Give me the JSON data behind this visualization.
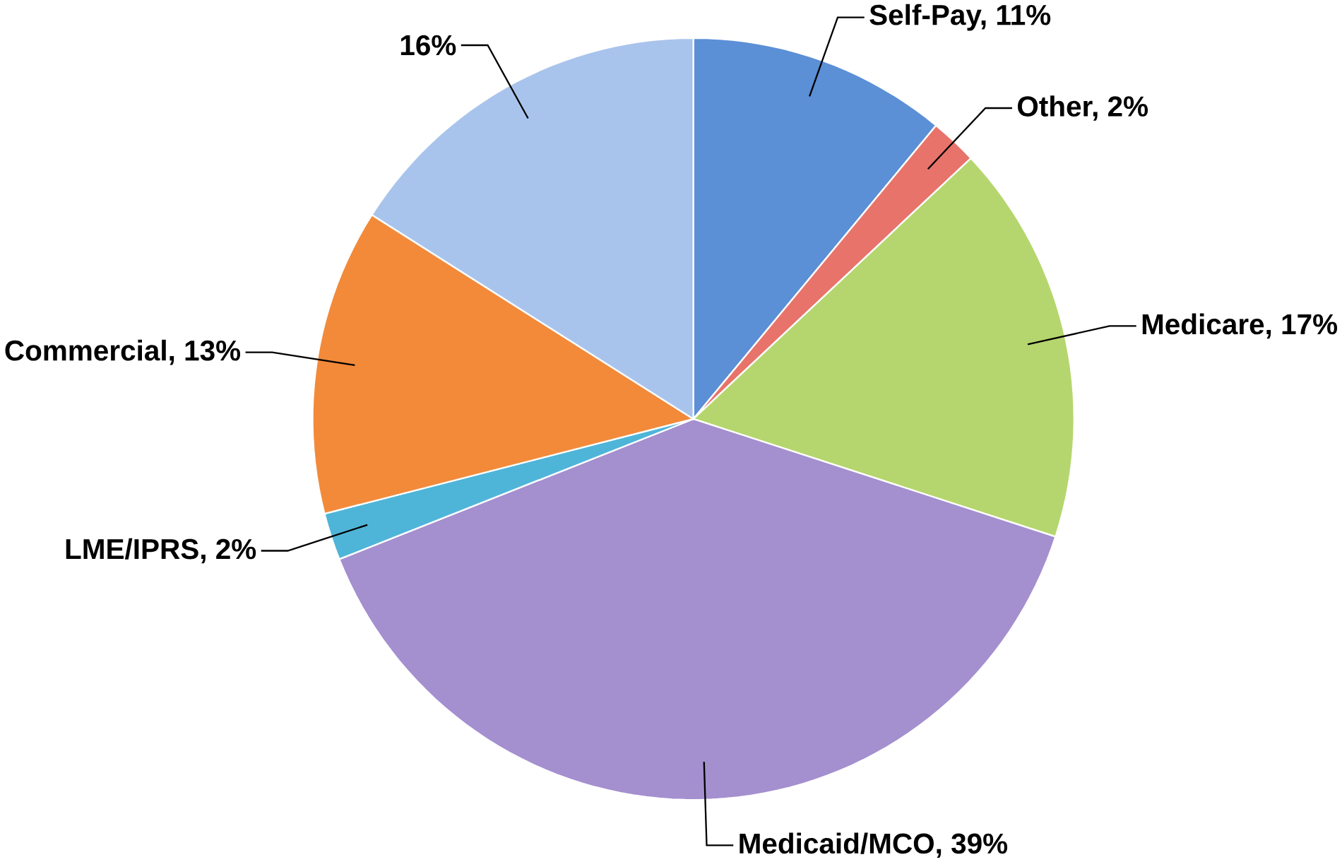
{
  "chart_data": {
    "type": "pie",
    "values": [
      11,
      2,
      17,
      39,
      2,
      13,
      16
    ],
    "value_labels": [
      "Self-Pay, 11%",
      "Other, 2%",
      "Medicare, 17%",
      "Medicaid/MCO, 39%",
      "LME/IPRS, 2%",
      "Commercial, 13%",
      "16%"
    ],
    "colors": [
      "#5b8fd6",
      "#e8736b",
      "#b5d66e",
      "#a48fcf",
      "#4fb5d8",
      "#f28a3a",
      "#a9c4ec"
    ]
  }
}
